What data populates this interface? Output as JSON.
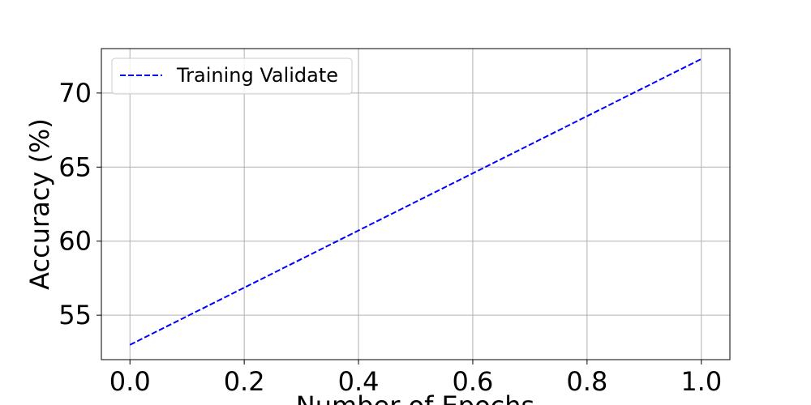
{
  "chart_data": {
    "type": "line",
    "title": "",
    "xlabel": "Number of Epochs",
    "ylabel": "Accuracy (%)",
    "xlim": [
      -0.05,
      1.05
    ],
    "ylim": [
      52.0,
      73.0
    ],
    "xticks": [
      0.0,
      0.2,
      0.4,
      0.6,
      0.8,
      1.0
    ],
    "xtick_labels": [
      "0.0",
      "0.2",
      "0.4",
      "0.6",
      "0.8",
      "1.0"
    ],
    "yticks": [
      55,
      60,
      65,
      70
    ],
    "ytick_labels": [
      "55",
      "60",
      "65",
      "70"
    ],
    "grid": true,
    "legend_position": "top-left",
    "series": [
      {
        "name": "Training Validate",
        "color": "#0000ff",
        "line_style": "dashed",
        "x": [
          0,
          1
        ],
        "values": [
          53.0,
          72.3
        ]
      }
    ]
  }
}
